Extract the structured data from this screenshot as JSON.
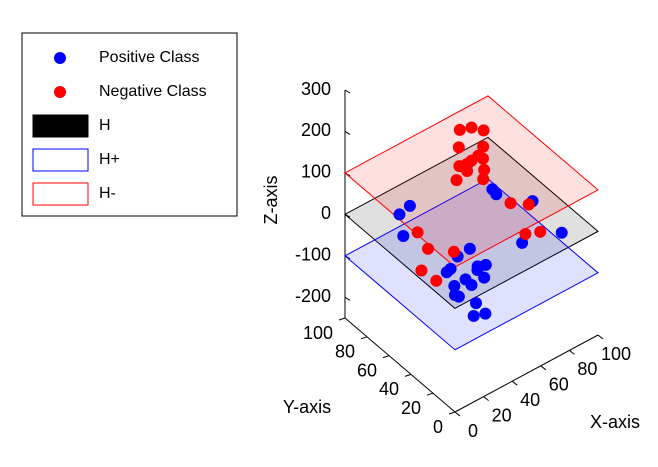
{
  "chart_data": {
    "type": "scatter3d",
    "xlabel": "X-axis",
    "ylabel": "Y-axis",
    "zlabel": "Z-axis",
    "xlim": [
      0,
      100
    ],
    "ylim": [
      0,
      100
    ],
    "zlim": [
      -250,
      300
    ],
    "xticks": [
      0,
      20,
      40,
      60,
      80,
      100
    ],
    "yticks": [
      0,
      20,
      40,
      60,
      80,
      100
    ],
    "zticks": [
      -200,
      -100,
      0,
      100,
      200,
      300
    ],
    "series": [
      {
        "name": "Positive Class",
        "color": "#0000ff",
        "x": [
          50,
          45,
          55,
          60,
          40,
          52,
          48,
          58,
          42,
          50,
          55,
          47,
          62,
          38,
          10,
          20,
          85,
          90,
          75,
          15,
          30,
          70,
          80,
          25
        ],
        "y": [
          50,
          55,
          45,
          50,
          52,
          40,
          60,
          55,
          45,
          48,
          58,
          42,
          60,
          50,
          60,
          30,
          40,
          20,
          60,
          70,
          80,
          30,
          70,
          40
        ],
        "z": [
          -150,
          -180,
          -130,
          -120,
          -160,
          -200,
          -100,
          -140,
          -110,
          -220,
          -90,
          -170,
          -150,
          -130,
          20,
          -10,
          10,
          -30,
          0,
          40,
          10,
          -40,
          -20,
          -50
        ]
      },
      {
        "name": "Negative Class",
        "color": "#ff0000",
        "x": [
          50,
          45,
          55,
          60,
          40,
          52,
          48,
          58,
          42,
          50,
          55,
          47,
          62,
          38,
          10,
          20,
          85,
          90,
          75,
          15,
          30,
          70,
          80,
          35
        ],
        "y": [
          50,
          55,
          45,
          52,
          48,
          42,
          58,
          50,
          44,
          50,
          60,
          40,
          55,
          48,
          30,
          60,
          60,
          50,
          20,
          50,
          40,
          80,
          40,
          70
        ],
        "z": [
          150,
          180,
          130,
          200,
          160,
          120,
          210,
          140,
          170,
          230,
          110,
          190,
          150,
          130,
          -20,
          10,
          -40,
          -30,
          0,
          -50,
          -10,
          20,
          -60,
          -80
        ]
      }
    ],
    "planes": [
      {
        "name": "H",
        "color": "#000000",
        "z": 0
      },
      {
        "name": "H+",
        "color": "#0000ff",
        "z": -100
      },
      {
        "name": "H-",
        "color": "#ff0000",
        "z": 100
      }
    ]
  }
}
